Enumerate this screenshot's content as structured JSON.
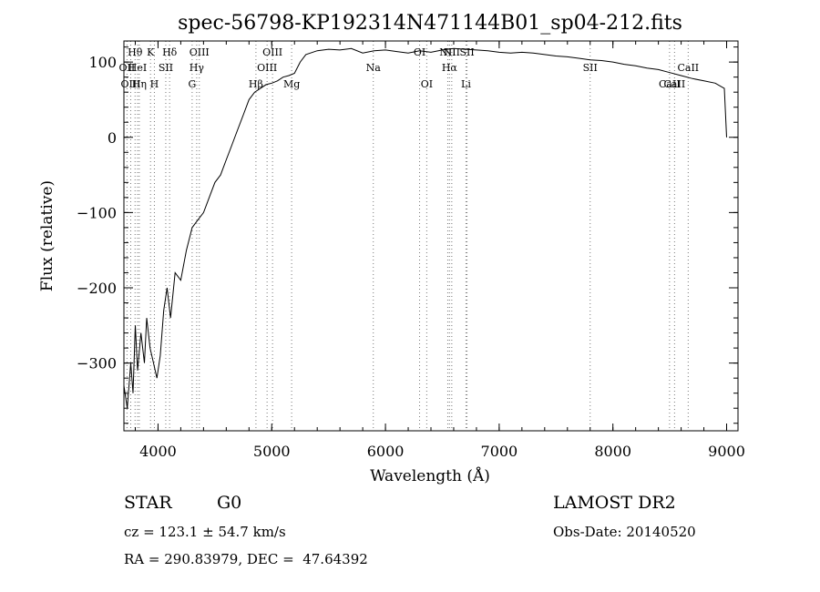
{
  "chart_data": {
    "type": "line",
    "title": "spec-56798-KP192314N471144B01_sp04-212.fits",
    "xlabel": "Wavelength (Å)",
    "ylabel": "Flux (relative)",
    "xlim": [
      3700,
      9100
    ],
    "ylim": [
      -390,
      128
    ],
    "x_ticks": [
      4000,
      5000,
      6000,
      7000,
      8000,
      9000
    ],
    "x_tick_labels": [
      "4000",
      "5000",
      "6000",
      "7000",
      "8000",
      "9000"
    ],
    "y_ticks": [
      -300,
      -200,
      -100,
      0,
      100
    ],
    "y_tick_labels": [
      "−300",
      "−200",
      "−100",
      "0",
      "100"
    ],
    "grid": false,
    "series": [
      {
        "x": [
          3700,
          3730,
          3760,
          3780,
          3800,
          3820,
          3850,
          3880,
          3900,
          3930,
          3960,
          3990,
          4020,
          4050,
          4080,
          4110,
          4150,
          4200,
          4250,
          4300,
          4350,
          4400,
          4450,
          4500,
          4550,
          4600,
          4650,
          4700,
          4750,
          4800,
          4850,
          4900,
          4950,
          5000,
          5050,
          5100,
          5150,
          5200,
          5250,
          5300,
          5400,
          5500,
          5600,
          5700,
          5800,
          5900,
          6000,
          6100,
          6200,
          6300,
          6400,
          6500,
          6600,
          6700,
          6800,
          6900,
          7000,
          7100,
          7200,
          7300,
          7400,
          7500,
          7600,
          7700,
          7800,
          7900,
          8000,
          8100,
          8200,
          8300,
          8400,
          8500,
          8600,
          8700,
          8800,
          8900,
          8980,
          9000
        ],
        "y": [
          -330,
          -360,
          -300,
          -340,
          -250,
          -310,
          -260,
          -300,
          -240,
          -280,
          -300,
          -320,
          -290,
          -230,
          -200,
          -240,
          -180,
          -190,
          -150,
          -120,
          -110,
          -100,
          -80,
          -60,
          -50,
          -30,
          -10,
          10,
          30,
          50,
          60,
          65,
          70,
          72,
          75,
          80,
          82,
          85,
          100,
          110,
          115,
          117,
          116,
          118,
          112,
          115,
          116,
          114,
          112,
          115,
          113,
          116,
          118,
          117,
          116,
          115,
          113,
          112,
          113,
          112,
          110,
          108,
          107,
          105,
          103,
          102,
          100,
          97,
          95,
          92,
          90,
          86,
          82,
          78,
          75,
          72,
          65,
          0
        ]
      }
    ],
    "line_markers": [
      {
        "label": "Hθ",
        "x": 3798,
        "row": 0
      },
      {
        "label": "OII",
        "x": 3727,
        "row": 1
      },
      {
        "label": "OIII",
        "x": 3760,
        "row": 2
      },
      {
        "label": "HeI",
        "x": 3820,
        "row": 1
      },
      {
        "label": "Hη",
        "x": 3835,
        "row": 2
      },
      {
        "label": "K",
        "x": 3934,
        "row": 0
      },
      {
        "label": "H",
        "x": 3968,
        "row": 2
      },
      {
        "label": "SII",
        "x": 4068,
        "row": 1
      },
      {
        "label": "Hδ",
        "x": 4102,
        "row": 0
      },
      {
        "label": "OIII",
        "x": 4363,
        "row": 0
      },
      {
        "label": "Hγ",
        "x": 4340,
        "row": 1
      },
      {
        "label": "G",
        "x": 4300,
        "row": 2
      },
      {
        "label": "Hβ",
        "x": 4861,
        "row": 2
      },
      {
        "label": "OIII",
        "x": 5007,
        "row": 0
      },
      {
        "label": "OIII",
        "x": 4959,
        "row": 1
      },
      {
        "label": "Mg",
        "x": 5175,
        "row": 2
      },
      {
        "label": "Na",
        "x": 5893,
        "row": 1
      },
      {
        "label": "OI",
        "x": 6300,
        "row": 0
      },
      {
        "label": "OI",
        "x": 6363,
        "row": 2
      },
      {
        "label": "NII",
        "x": 6548,
        "row": 0
      },
      {
        "label": "Hα",
        "x": 6563,
        "row": 1
      },
      {
        "label": "NII",
        "x": 6583,
        "row": 0
      },
      {
        "label": "SII",
        "x": 6717,
        "row": 0
      },
      {
        "label": "Li",
        "x": 6708,
        "row": 2
      },
      {
        "label": "SII",
        "x": 7800,
        "row": 1
      },
      {
        "label": "CaII",
        "x": 8498,
        "row": 2
      },
      {
        "label": "CaII",
        "x": 8662,
        "row": 1
      },
      {
        "label": "CaII",
        "x": 8542,
        "row": 2
      }
    ]
  },
  "info": {
    "object_class": "STAR",
    "subclass": "G0",
    "survey": "LAMOST DR2",
    "redshift_line": "cz = 123.1 ± 54.7 km/s",
    "obs_date_line": "Obs-Date: 20140520",
    "coords_line": "RA = 290.83979, DEC =  47.64392"
  }
}
